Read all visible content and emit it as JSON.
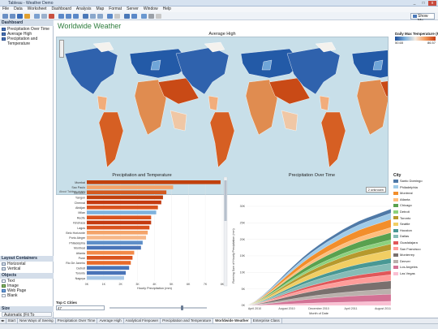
{
  "window": {
    "title": "Tableau - Weather Demo",
    "controls": [
      "_",
      "□",
      "x"
    ]
  },
  "menu": [
    "File",
    "Data",
    "Worksheet",
    "Dashboard",
    "Analysis",
    "Map",
    "Format",
    "Server",
    "Window",
    "Help"
  ],
  "toolbar": {
    "show_me": "Show Me"
  },
  "left_pane": {
    "dashboard_header": "Dashboard",
    "sheets": [
      "Precipitation Over Time",
      "Average High",
      "Precipitation and Temperature"
    ],
    "layout_header": "Layout Containers",
    "layout_items": [
      "Horizontal",
      "Vertical"
    ],
    "objects_header": "Objects",
    "objects": [
      "Text",
      "Image",
      "Web Page",
      "Blank"
    ],
    "size_header": "Size",
    "size_value": "Automatic (Fit To Window)"
  },
  "dashboard": {
    "title": "Worldwide Weather",
    "map": {
      "title": "Average High",
      "credit": "About Tableau maps: www.tableausoftware.com/mapdata",
      "badge": "2 unknown"
    },
    "legend": {
      "title": "Daily Max Temperature (F)",
      "min": "50.65",
      "max": "86.57"
    },
    "bar_chart": {
      "title": "Precipitation and Temperature",
      "xlabel": "Hourly Precipitation (mm)",
      "filter_label": "Top C Cities",
      "filter_value": "47"
    },
    "area_chart": {
      "title": "Precipitation Over Time",
      "ylabel": "Running Sum of Hourly Precipitation (mm)",
      "xlabel": "Month of Date"
    },
    "city_legend": {
      "title": "City",
      "items": [
        {
          "name": "Santo Domingo",
          "color": "#4e79a7"
        },
        {
          "name": "Philadelphia",
          "color": "#a0cbe8"
        },
        {
          "name": "Montreal",
          "color": "#f28e2b"
        },
        {
          "name": "Atlanta",
          "color": "#ffbe7d"
        },
        {
          "name": "Chicago",
          "color": "#59a14f"
        },
        {
          "name": "Detroit",
          "color": "#8cd17d"
        },
        {
          "name": "Toronto",
          "color": "#b6992d"
        },
        {
          "name": "Seattle",
          "color": "#f1ce63"
        },
        {
          "name": "Houston",
          "color": "#499894"
        },
        {
          "name": "Dallas",
          "color": "#86bcb6"
        },
        {
          "name": "Guadalajara",
          "color": "#e15759"
        },
        {
          "name": "San Francisco",
          "color": "#ff9d9a"
        },
        {
          "name": "Monterrey",
          "color": "#79706e"
        },
        {
          "name": "Denver",
          "color": "#bab0ac"
        },
        {
          "name": "Los Angeles",
          "color": "#d37295"
        },
        {
          "name": "Las Vegas",
          "color": "#fabfd2"
        }
      ]
    }
  },
  "tabs": [
    "Start",
    "New Ways of Seeing",
    "Precipitation Over Time",
    "Average High",
    "Analytical Firepower",
    "Precipitation and Temperature",
    "Worldwide Weather",
    "Enterprise Class"
  ],
  "active_tab": "Worldwide Weather",
  "chart_data": [
    {
      "type": "bar",
      "title": "Precipitation and Temperature",
      "xlabel": "Hourly Precipitation (mm)",
      "xlim": [
        0,
        8000
      ],
      "xticks": [
        "0K",
        "1K",
        "2K",
        "3K",
        "4K",
        "5K",
        "6K",
        "7K",
        "8K"
      ],
      "categories": [
        "Mumbai",
        "Sao Paulo",
        "Salvador",
        "Yangon",
        "Chennai",
        "Abidjan",
        "Milan",
        "Recife",
        "Kinshasa",
        "Lagos",
        "Belo Horizonte",
        "Porto Alegre",
        "Philadelphia",
        "Montreal",
        "Atlanta",
        "Pune",
        "Rio De Janeiro",
        "Detroit",
        "Toronto",
        "Nagoya"
      ],
      "values": [
        7900,
        5100,
        4700,
        4500,
        4400,
        4200,
        4100,
        3800,
        3800,
        3700,
        3600,
        3500,
        3300,
        3200,
        2800,
        2700,
        2600,
        2500,
        2300,
        2200
      ],
      "colors": [
        "#c1410d",
        "#f4a46a",
        "#d35a1f",
        "#c1410d",
        "#c43a10",
        "#d9531e",
        "#7fb2dd",
        "#d9531e",
        "#c43a10",
        "#d9531e",
        "#f4a46a",
        "#f6b88a",
        "#5f8fc8",
        "#4a74b8",
        "#f28a4a",
        "#d9531e",
        "#e86a2a",
        "#4a74b8",
        "#4a74b8",
        "#a9c8e6"
      ]
    },
    {
      "type": "area",
      "title": "Precipitation Over Time",
      "xlabel": "Month of Date",
      "ylabel": "Running Sum of Hourly Precipitation (mm)",
      "ylim": [
        0,
        30000
      ],
      "yticks": [
        "0K",
        "5K",
        "10K",
        "15K",
        "20K",
        "25K",
        "30K"
      ],
      "xticks": [
        "April 2010",
        "August 2010",
        "December 2010",
        "April 2011",
        "August 2011"
      ],
      "x": [
        0,
        1,
        2,
        3,
        4,
        5,
        6,
        7,
        8,
        9,
        10,
        11,
        12,
        13,
        14,
        15,
        16,
        17,
        18
      ],
      "total": [
        0,
        1200,
        3000,
        5200,
        7600,
        10000,
        12300,
        14500,
        16500,
        18300,
        20000,
        21500,
        23000,
        24300,
        25500,
        26500,
        27400,
        28300,
        29200
      ]
    }
  ]
}
